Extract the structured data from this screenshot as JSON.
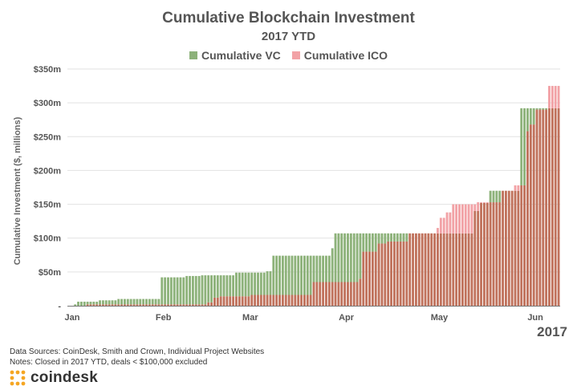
{
  "header": {
    "title": "Cumulative Blockchain Investment",
    "subtitle": "2017 YTD"
  },
  "legend": {
    "vc_label": "Cumulative VC",
    "ico_label": "Cumulative ICO",
    "vc_color": "#8db27a",
    "ico_color": "#f2a2a6",
    "overlap_color": "#c0725c"
  },
  "year_label": "2017",
  "footer": {
    "sources": "Data Sources: CoinDesk, Smith and Crown, Individual Project Websites",
    "notes": "Notes: Closed in 2017 YTD, deals < $100,000 excluded",
    "brand": "coindesk",
    "brand_color": "#f5a623"
  },
  "chart_data": {
    "type": "bar",
    "title": "Cumulative Blockchain Investment",
    "subtitle": "2017 YTD",
    "ylabel": "Cumulative Investment ($, millions)",
    "ylim": [
      0,
      350
    ],
    "yticks": [
      0,
      50,
      100,
      150,
      200,
      250,
      300,
      350
    ],
    "ytick_labels": [
      "-",
      "$50m",
      "$100m",
      "$150m",
      "$200m",
      "$250m",
      "$300m",
      "$350m"
    ],
    "month_labels": [
      "Jan",
      "Feb",
      "Mar",
      "Apr",
      "May",
      "Jun"
    ],
    "x_start": "2017-01-01",
    "x_end": "2017-06-08",
    "series": [
      {
        "name": "Cumulative VC",
        "color": "#8db27a",
        "steps": [
          [
            "2017-01-01",
            0
          ],
          [
            "2017-01-03",
            2
          ],
          [
            "2017-01-04",
            6
          ],
          [
            "2017-01-11",
            8
          ],
          [
            "2017-01-17",
            10
          ],
          [
            "2017-01-31",
            42
          ],
          [
            "2017-02-08",
            44
          ],
          [
            "2017-02-13",
            45
          ],
          [
            "2017-02-24",
            49
          ],
          [
            "2017-03-06",
            51
          ],
          [
            "2017-03-08",
            74
          ],
          [
            "2017-03-27",
            85
          ],
          [
            "2017-03-28",
            107
          ],
          [
            "2017-05-12",
            140
          ],
          [
            "2017-05-14",
            152
          ],
          [
            "2017-05-17",
            170
          ],
          [
            "2017-05-27",
            292
          ]
        ]
      },
      {
        "name": "Cumulative ICO",
        "color": "#f2a2a6",
        "steps": [
          [
            "2017-01-01",
            0
          ],
          [
            "2017-01-07",
            2
          ],
          [
            "2017-02-15",
            5
          ],
          [
            "2017-02-17",
            12
          ],
          [
            "2017-02-19",
            14
          ],
          [
            "2017-03-01",
            16
          ],
          [
            "2017-03-21",
            35
          ],
          [
            "2017-04-05",
            40
          ],
          [
            "2017-04-06",
            80
          ],
          [
            "2017-04-11",
            92
          ],
          [
            "2017-04-14",
            95
          ],
          [
            "2017-04-21",
            107
          ],
          [
            "2017-04-30",
            115
          ],
          [
            "2017-05-01",
            130
          ],
          [
            "2017-05-03",
            138
          ],
          [
            "2017-05-05",
            150
          ],
          [
            "2017-05-13",
            153
          ],
          [
            "2017-05-21",
            170
          ],
          [
            "2017-05-25",
            178
          ],
          [
            "2017-05-29",
            258
          ],
          [
            "2017-05-30",
            268
          ],
          [
            "2017-06-01",
            290
          ],
          [
            "2017-06-05",
            325
          ]
        ]
      }
    ]
  }
}
